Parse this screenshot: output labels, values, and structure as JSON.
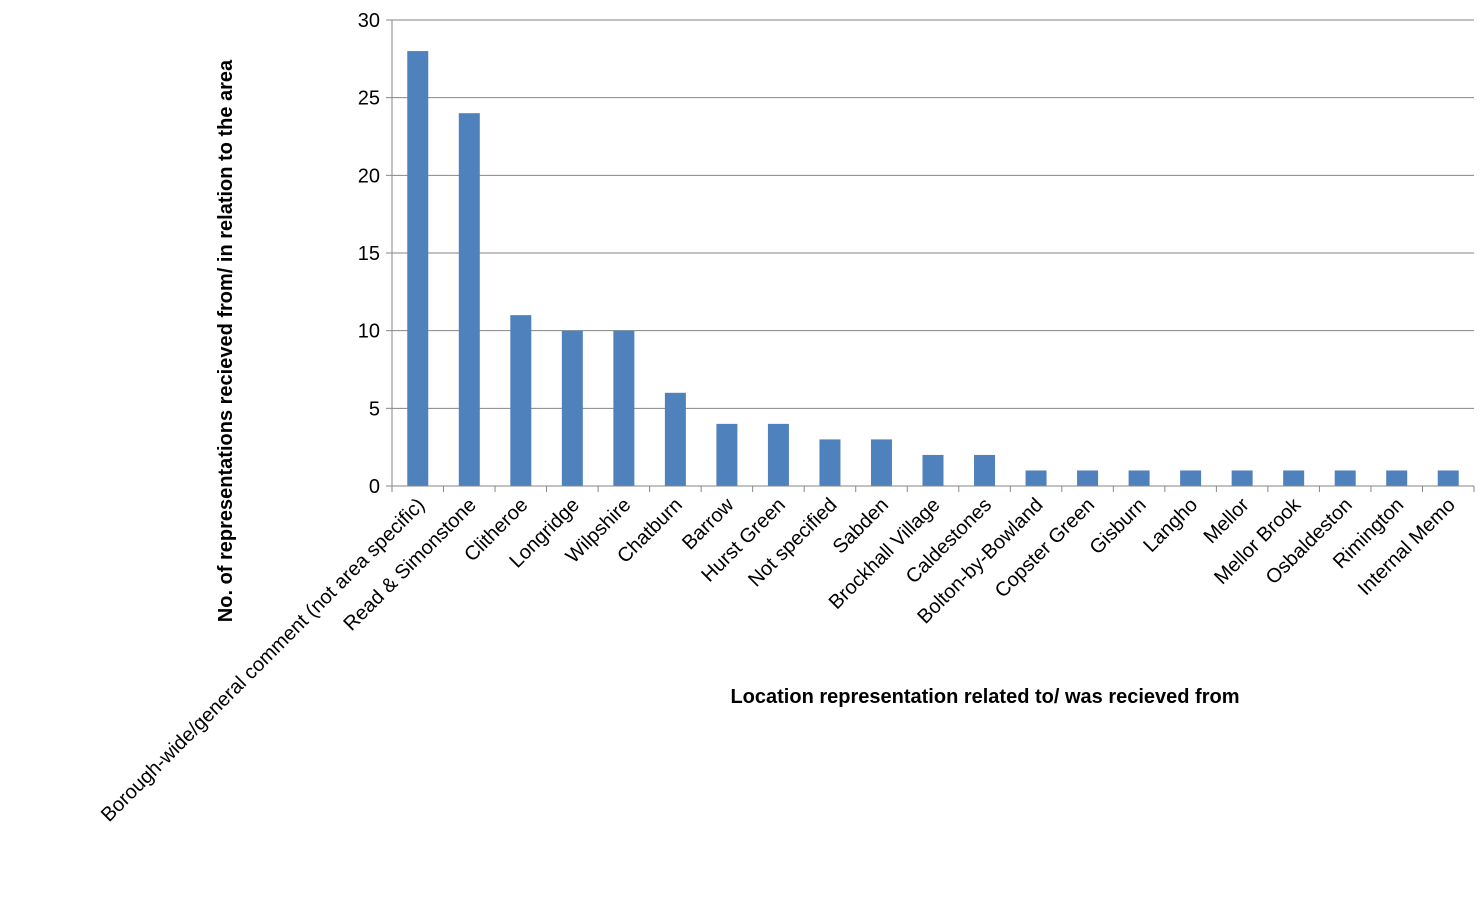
{
  "chart_data": {
    "type": "bar",
    "title": "",
    "xlabel": "Location representation related to/ was recieved from",
    "ylabel": "No. of representations recieved from/ in relation to the area",
    "categories": [
      "Borough-wide/general comment (not area specific)",
      "Read & Simonstone",
      "Clitheroe",
      "Longridge",
      "Wilpshire",
      "Chatburn",
      "Barrow",
      "Hurst Green",
      "Not specified",
      "Sabden",
      "Brockhall Village",
      "Caldestones",
      "Bolton-by-Bowland",
      "Copster Green",
      "Gisburn",
      "Langho",
      "Mellor",
      "Mellor Brook",
      "Osbaldeston",
      "Rimington",
      "Internal Memo"
    ],
    "values": [
      28,
      24,
      11,
      10,
      10,
      6,
      4,
      4,
      3,
      3,
      2,
      2,
      1,
      1,
      1,
      1,
      1,
      1,
      1,
      1,
      1
    ],
    "ylim": [
      0,
      30
    ],
    "yticks": [
      0,
      5,
      10,
      15,
      20,
      25,
      30
    ],
    "grid": true,
    "legend": "none",
    "bar_color": "#4F81BD",
    "grid_color": "#868686",
    "axis_color": "#868686"
  }
}
